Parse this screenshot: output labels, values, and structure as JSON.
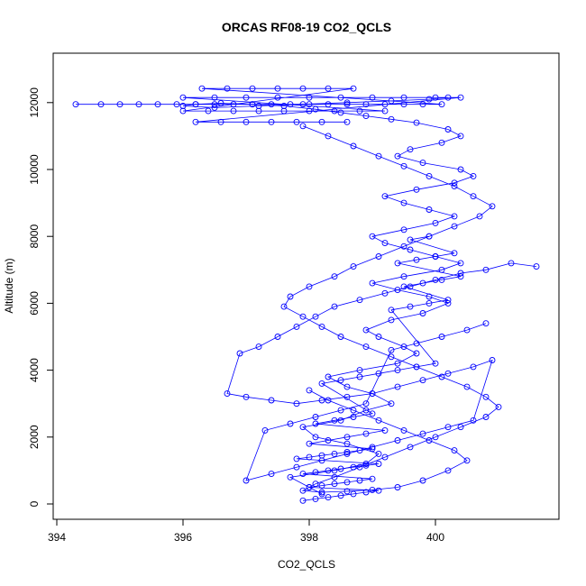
{
  "chart_data": {
    "type": "scatter",
    "title": "ORCAS RF08-19 CO2_QCLS",
    "xlabel": "CO2_QCLS",
    "ylabel": "Altitude (m)",
    "xlim": [
      394,
      402
    ],
    "ylim": [
      0,
      12500
    ],
    "x_ticks": [
      "394",
      "396",
      "398",
      "400"
    ],
    "y_ticks": [
      "0",
      "2000",
      "4000",
      "6000",
      "8000",
      "10000",
      "12000"
    ],
    "grid": false,
    "legend": "none",
    "color": "#0000ff",
    "marker": "open-circle",
    "series": [
      {
        "x": [
          398.2,
          398.0,
          397.7,
          398.4,
          398.9,
          399.1,
          398.6,
          398.1,
          397.9,
          398.5,
          398.9,
          399.3,
          399.0,
          398.6,
          398.3,
          398.8,
          399.4,
          399.7,
          399.5,
          399.1,
          398.9,
          399.3,
          399.8,
          400.2,
          399.9,
          399.4,
          399.0,
          399.5,
          400.1,
          400.4,
          400.0,
          399.6,
          399.2,
          399.0,
          399.5,
          400.0,
          400.3,
          399.9,
          399.5,
          399.2,
          399.7,
          400.3,
          400.6,
          400.4,
          399.8,
          399.4,
          399.6,
          400.1,
          400.4,
          400.2,
          399.7,
          399.3,
          398.9,
          398.5,
          398.1,
          397.6,
          397.1,
          396.6,
          396.2,
          396.0,
          396.5,
          397.2,
          397.9,
          398.6,
          399.3,
          399.9,
          400.2
        ],
        "y": [
          300,
          500,
          800,
          1000,
          1200,
          1500,
          1800,
          2000,
          2300,
          2500,
          2800,
          3000,
          3300,
          3500,
          3800,
          4000,
          4200,
          4500,
          4700,
          5000,
          5200,
          5500,
          5700,
          6000,
          6200,
          6400,
          6600,
          6800,
          7000,
          7200,
          7400,
          7600,
          7800,
          8000,
          8200,
          8400,
          8600,
          8800,
          9000,
          9200,
          9400,
          9600,
          9800,
          10000,
          10200,
          10400,
          10600,
          10800,
          11000,
          11200,
          11400,
          11500,
          11600,
          11700,
          11800,
          11900,
          11950,
          11980,
          11950,
          11900,
          11850,
          11900,
          11950,
          12000,
          12050,
          12100,
          12150
        ]
      },
      {
        "x": [
          394.3,
          394.7,
          395.0,
          395.3,
          395.6,
          395.9,
          396.2,
          396.5,
          396.8,
          397.1,
          397.4,
          397.7,
          398.0,
          398.3,
          398.6,
          398.9,
          399.2,
          399.5,
          399.8,
          400.1,
          396.3,
          396.7,
          397.1,
          397.5,
          397.9,
          398.3,
          398.7,
          396.0,
          396.4,
          396.8,
          397.2,
          397.6,
          398.0,
          398.4,
          398.8,
          399.2,
          396.0,
          396.5,
          397.0,
          397.5,
          398.0,
          398.5,
          399.0,
          399.5,
          400.0,
          400.4,
          396.2,
          396.6,
          397.0,
          397.4,
          397.8,
          398.2,
          398.6
        ],
        "y": [
          11950,
          11950,
          11950,
          11950,
          11950,
          11950,
          11950,
          11950,
          11950,
          11950,
          11950,
          11950,
          11950,
          11950,
          11950,
          11950,
          11950,
          11950,
          11950,
          11950,
          12420,
          12420,
          12420,
          12420,
          12420,
          12420,
          12420,
          11750,
          11750,
          11750,
          11750,
          11750,
          11750,
          11750,
          11750,
          11750,
          12150,
          12150,
          12150,
          12150,
          12150,
          12150,
          12150,
          12150,
          12150,
          12150,
          11420,
          11420,
          11420,
          11420,
          11420,
          11420,
          11420
        ]
      },
      {
        "x": [
          397.9,
          398.3,
          398.7,
          399.1,
          399.5,
          399.9,
          400.3,
          400.6,
          400.9,
          400.7,
          400.3,
          399.9,
          399.5,
          399.1,
          398.7,
          398.4,
          398.0,
          397.7,
          397.6,
          397.9,
          398.2,
          398.5,
          398.9,
          399.3,
          399.7,
          400.1,
          400.5,
          400.8,
          401.0,
          400.8,
          400.4,
          400.0,
          399.6,
          399.2,
          398.8,
          398.4,
          398.1,
          397.9,
          398.2,
          398.6,
          399.0,
          399.4,
          399.8,
          400.2,
          400.5,
          400.3,
          399.9,
          399.5,
          399.1,
          398.7,
          398.3,
          398.0
        ],
        "y": [
          11300,
          11000,
          10700,
          10400,
          10100,
          9800,
          9500,
          9200,
          8900,
          8600,
          8300,
          8000,
          7700,
          7400,
          7100,
          6800,
          6500,
          6200,
          5900,
          5600,
          5300,
          5000,
          4700,
          4400,
          4100,
          3800,
          3500,
          3200,
          2900,
          2600,
          2300,
          2000,
          1700,
          1400,
          1100,
          800,
          600,
          400,
          350,
          380,
          420,
          500,
          700,
          1000,
          1300,
          1600,
          1900,
          2200,
          2500,
          2800,
          3100,
          3400
        ]
      },
      {
        "x": [
          401.6,
          401.2,
          400.8,
          400.4,
          400.0,
          399.6,
          399.2,
          398.8,
          398.4,
          398.1,
          397.8,
          397.5,
          397.2,
          396.9,
          396.7,
          397.0,
          397.4,
          397.8,
          398.2,
          398.6,
          399.0,
          399.4,
          399.8,
          400.2,
          400.6,
          400.9,
          400.6,
          400.2,
          399.8,
          399.4,
          399.0,
          398.6,
          398.2,
          397.8,
          397.4,
          397.0,
          397.3,
          397.7,
          398.1,
          398.5,
          398.9,
          399.3,
          399.7,
          400.1,
          400.5,
          400.8
        ],
        "y": [
          7100,
          7200,
          7000,
          6900,
          6700,
          6500,
          6300,
          6100,
          5900,
          5600,
          5300,
          5000,
          4700,
          4500,
          3300,
          3200,
          3100,
          3000,
          3100,
          3200,
          3300,
          3500,
          3700,
          3900,
          4100,
          4300,
          2500,
          2300,
          2100,
          1900,
          1700,
          1500,
          1300,
          1100,
          900,
          700,
          2200,
          2400,
          2600,
          2800,
          3000,
          4600,
          4800,
          5000,
          5200,
          5400
        ]
      },
      {
        "x": [
          397.9,
          398.1,
          398.3,
          398.5,
          398.7,
          398.9,
          399.1,
          398.0,
          398.2,
          398.4,
          398.6,
          398.8,
          399.0,
          397.9,
          398.1,
          398.3,
          398.5,
          398.7,
          398.9,
          399.1,
          397.8,
          398.0,
          398.2,
          398.4,
          398.6,
          398.8,
          399.0,
          398.0,
          398.3,
          398.6,
          398.9,
          399.2,
          398.1,
          398.4,
          398.7,
          399.0,
          398.2,
          398.5,
          398.8,
          399.1,
          399.4,
          399.7,
          400.0,
          399.3,
          399.6,
          399.9,
          400.2,
          399.5,
          399.8,
          400.1,
          400.4,
          399.4,
          399.7,
          400.0,
          400.3,
          399.6,
          399.9
        ],
        "y": [
          100,
          150,
          200,
          250,
          300,
          350,
          400,
          500,
          550,
          600,
          650,
          700,
          750,
          900,
          950,
          1000,
          1050,
          1100,
          1150,
          1200,
          1350,
          1400,
          1450,
          1500,
          1550,
          1600,
          1650,
          1800,
          1900,
          2000,
          2100,
          2200,
          2400,
          2500,
          2600,
          2700,
          3600,
          3700,
          3800,
          3900,
          4000,
          4100,
          4200,
          5800,
          5900,
          6000,
          6100,
          6500,
          6600,
          6700,
          6800,
          7200,
          7300,
          7400,
          7500,
          7900,
          8000
        ]
      }
    ]
  }
}
